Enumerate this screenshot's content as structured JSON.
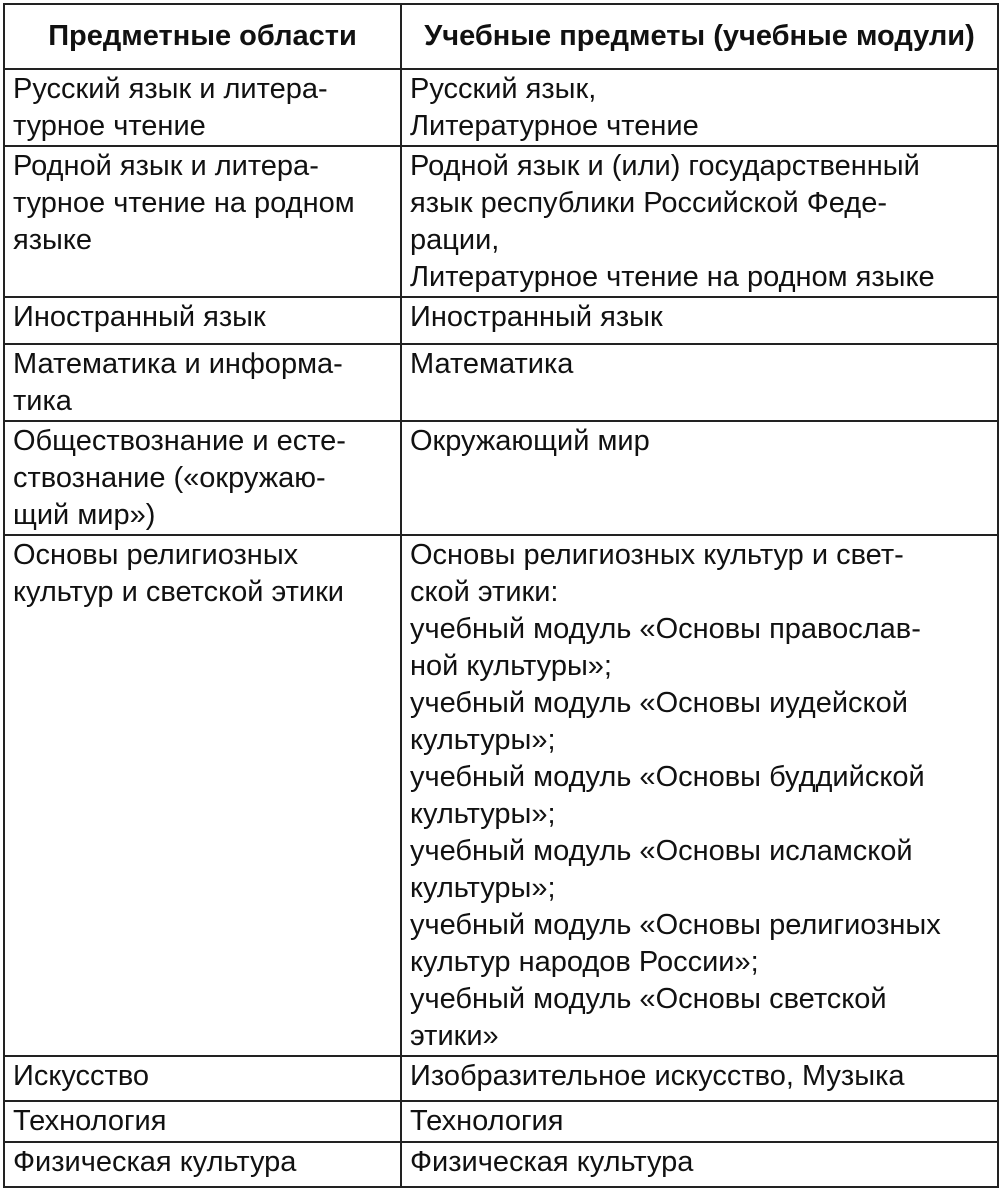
{
  "header": {
    "col1": "Предметные области",
    "col2": "Учебные предметы (учебные модули)"
  },
  "rows": [
    {
      "area": "Русский язык и литера-\nтурное чтение",
      "subjects": "Русский язык,\nЛитературное чтение"
    },
    {
      "area": "Родной язык и литера-\nтурное чтение на родном\nязыке",
      "subjects": "Родной язык и (или) государственный\nязык республики Российской Феде-\nрации,\nЛитературное чтение на родном языке"
    },
    {
      "area": "Иностранный язык",
      "subjects": "Иностранный язык"
    },
    {
      "area": "Математика и информа-\nтика",
      "subjects": "Математика"
    },
    {
      "area": "Обществознание и есте-\nствознание («окружаю-\nщий мир»)",
      "subjects": "Окружающий мир"
    },
    {
      "area": "Основы религиозных\nкультур и светской этики",
      "subjects": "Основы религиозных культур и свет-\nской этики:\nучебный модуль «Основы православ-\nной культуры»;\nучебный модуль «Основы иудейской\nкультуры»;\nучебный модуль «Основы буддийской\nкультуры»;\nучебный модуль «Основы исламской\nкультуры»;\nучебный модуль «Основы религиозных\nкультур народов России»;\nучебный модуль «Основы светской\nэтики»"
    },
    {
      "area": "Искусство",
      "subjects": "Изобразительное искусство, Музыка"
    },
    {
      "area": "Технология",
      "subjects": "Технология"
    },
    {
      "area": "Физическая культура",
      "subjects": "Физическая культура"
    }
  ]
}
